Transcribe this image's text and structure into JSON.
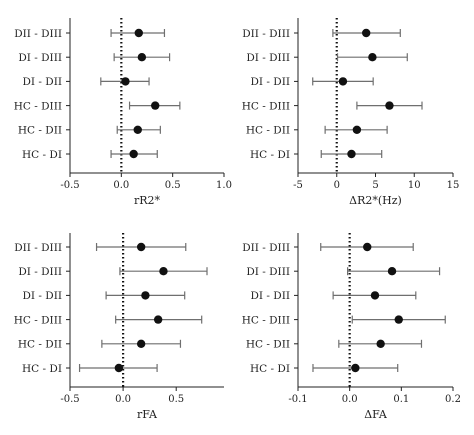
{
  "colors": {
    "axis": "#222222",
    "whisker": "#6f6f6f",
    "point": "#111111",
    "reference_line": "#111111"
  },
  "chart_data": [
    {
      "type": "scatter",
      "style": "forest-plot",
      "xlabel": "rR2*",
      "x_ticks": [
        "-0.5",
        "0.0",
        "0.5",
        "1.0"
      ],
      "xlim": [
        -0.5,
        1.0
      ],
      "reference_line": 0,
      "categories": [
        "DII - DIII",
        "DI - DIII",
        "DI - DII",
        "HC - DIII",
        "HC - DII",
        "HC - DI"
      ],
      "estimates": [
        0.17,
        0.2,
        0.04,
        0.33,
        0.16,
        0.12
      ],
      "ci_lower": [
        -0.1,
        -0.07,
        -0.2,
        0.08,
        -0.04,
        -0.1
      ],
      "ci_upper": [
        0.42,
        0.47,
        0.27,
        0.57,
        0.38,
        0.35
      ]
    },
    {
      "type": "scatter",
      "style": "forest-plot",
      "xlabel": "ΔR2*(Hz)",
      "x_ticks": [
        "-5",
        "0",
        "5",
        "10",
        "15"
      ],
      "xlim": [
        -5,
        15
      ],
      "reference_line": 0,
      "categories": [
        "DII - DIII",
        "DI - DIII",
        "DI - DII",
        "HC - DIII",
        "HC - DII",
        "HC - DI"
      ],
      "estimates": [
        3.8,
        4.6,
        0.8,
        6.8,
        2.6,
        1.9
      ],
      "ci_lower": [
        -0.5,
        0.1,
        -3.1,
        2.6,
        -1.5,
        -2.0
      ],
      "ci_upper": [
        8.2,
        9.1,
        4.7,
        11.0,
        6.5,
        5.8
      ]
    },
    {
      "type": "scatter",
      "style": "forest-plot",
      "xlabel": "rFA",
      "x_ticks": [
        "-0.5",
        "0.0",
        "0.5"
      ],
      "xlim": [
        -0.5,
        0.95
      ],
      "reference_line": 0,
      "categories": [
        "DII - DIII",
        "DI - DIII",
        "DI - DII",
        "HC - DIII",
        "HC - DII",
        "HC - DI"
      ],
      "estimates": [
        0.17,
        0.38,
        0.21,
        0.33,
        0.17,
        -0.04
      ],
      "ci_lower": [
        -0.25,
        -0.03,
        -0.16,
        -0.07,
        -0.2,
        -0.41
      ],
      "ci_upper": [
        0.59,
        0.79,
        0.58,
        0.74,
        0.54,
        0.32
      ]
    },
    {
      "type": "scatter",
      "style": "forest-plot",
      "xlabel": "ΔFA",
      "x_ticks": [
        "-0.1",
        "0.0",
        "0.1",
        "0.2"
      ],
      "xlim": [
        -0.1,
        0.2
      ],
      "reference_line": 0,
      "categories": [
        "DII - DIII",
        "DI - DIII",
        "DI - DII",
        "HC - DIII",
        "HC - DII",
        "HC - DI"
      ],
      "estimates": [
        0.034,
        0.082,
        0.049,
        0.095,
        0.06,
        0.011
      ],
      "ci_lower": [
        -0.056,
        -0.004,
        -0.032,
        0.005,
        -0.021,
        -0.071
      ],
      "ci_upper": [
        0.123,
        0.174,
        0.128,
        0.185,
        0.139,
        0.093
      ]
    }
  ]
}
